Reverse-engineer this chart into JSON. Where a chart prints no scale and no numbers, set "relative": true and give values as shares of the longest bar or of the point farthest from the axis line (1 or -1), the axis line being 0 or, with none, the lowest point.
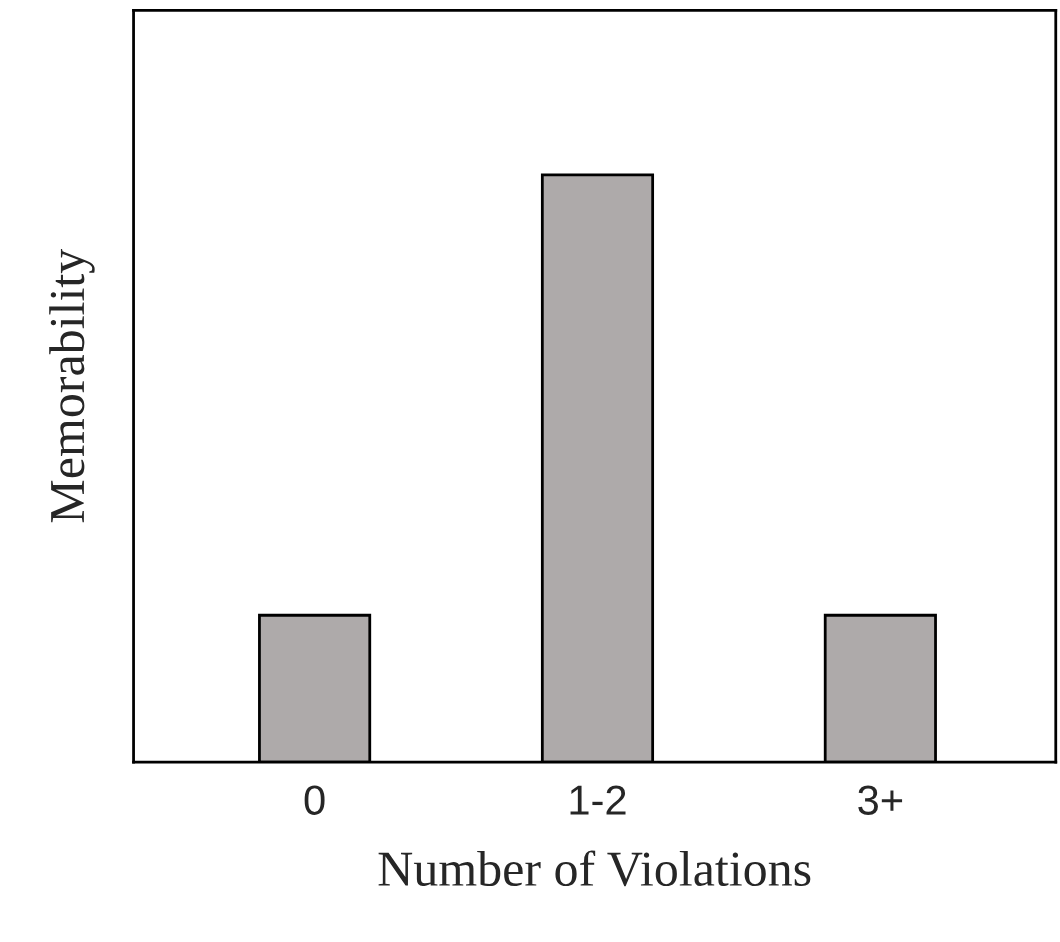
{
  "chart_data": {
    "type": "bar",
    "relative": true,
    "xlabel": "Number of Violations",
    "ylabel": "Memorability",
    "categories": [
      "0",
      "1-2",
      "3+"
    ],
    "values": [
      0.25,
      1,
      0.25
    ],
    "color": "#aeaaaa"
  }
}
